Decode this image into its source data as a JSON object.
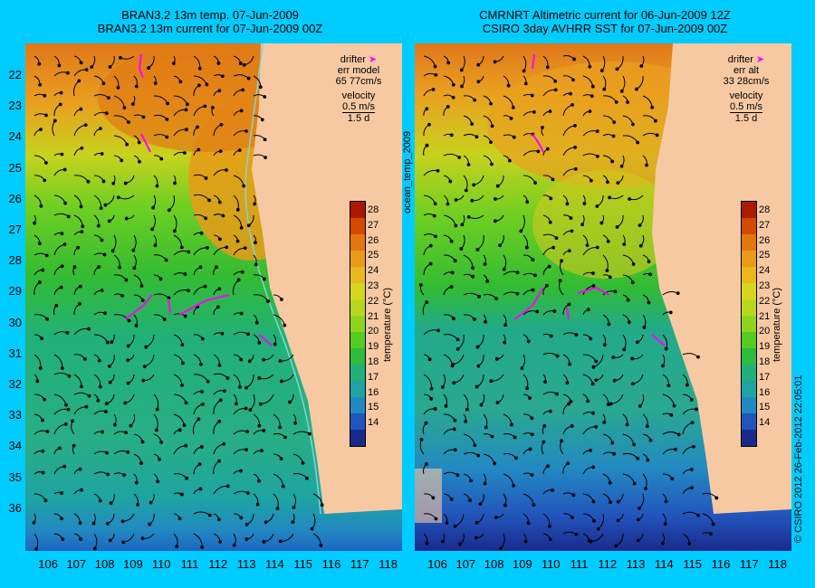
{
  "left": {
    "title_line1": "BRAN3.2 13m temp. 07-Jun-2009",
    "title_line2": "BRAN3.2 13m current for 07-Jun-2009 00Z",
    "legend_drifter": "drifter",
    "legend_err": "err model",
    "legend_err_value": "65 77cm/s",
    "legend_velocity": "velocity",
    "legend_speed": "0.5 m/s",
    "legend_days": "1.5 d"
  },
  "right": {
    "title_line1": "CMRNRT Altimetric current for 06-Jun-2009 12Z",
    "title_line2": "CSIRO 3day AVHRR SST for 07-Jun-2009 00Z",
    "legend_drifter": "drifter",
    "legend_err": "err alt",
    "legend_err_value": "33 28cm/s",
    "legend_velocity": "velocity",
    "legend_speed": "0.5 m/s",
    "legend_days": "1.5 d"
  },
  "side_label": "ocean_temp_2009",
  "copyright": "© CSIRO 2012   26-Feb-2012 22:05:01",
  "colorbar": {
    "label": "temperature (°C)",
    "ticks": [
      "28",
      "27",
      "26",
      "25",
      "24",
      "23",
      "22",
      "21",
      "20",
      "19",
      "18",
      "17",
      "16",
      "15",
      "14"
    ],
    "colors": [
      "#aa1a00",
      "#d14a00",
      "#e2760f",
      "#e99a18",
      "#e8b81e",
      "#d8d61c",
      "#b8d81f",
      "#8ed41f",
      "#55cc22",
      "#2fbb3e",
      "#22b07a",
      "#1ea3a3",
      "#2288c2",
      "#2255bb",
      "#1a2a8c"
    ]
  },
  "lat_labels": [
    "22",
    "23",
    "24",
    "25",
    "26",
    "27",
    "28",
    "29",
    "30",
    "31",
    "32",
    "33",
    "34",
    "35",
    "36"
  ],
  "lon_labels": [
    "106",
    "107",
    "108",
    "109",
    "110",
    "111",
    "112",
    "113",
    "114",
    "115",
    "116",
    "117",
    "118"
  ],
  "colors": {
    "background": "#00ccff",
    "land": "#f7c9a3",
    "drifter": "#ff00ff"
  }
}
